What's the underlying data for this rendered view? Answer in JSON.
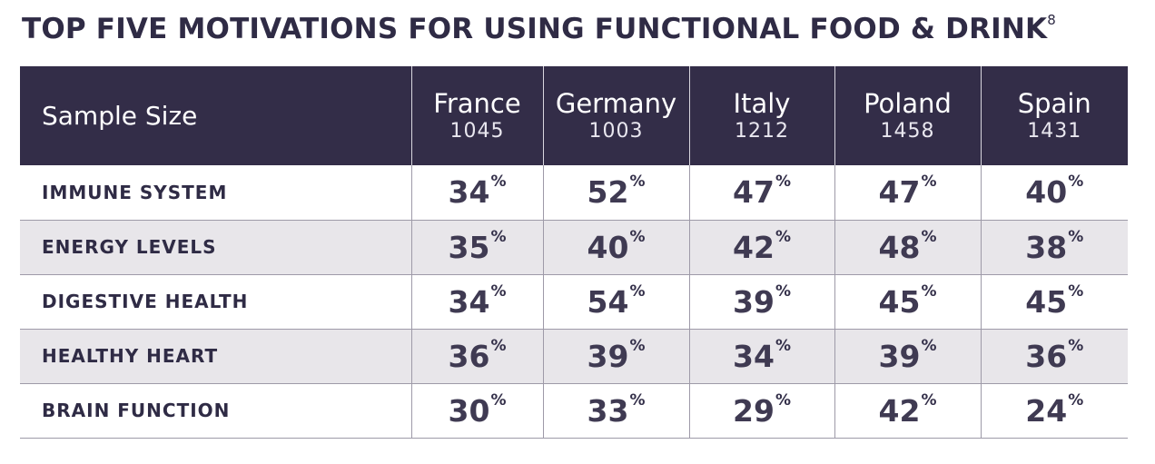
{
  "title": "TOP FIVE MOTIVATIONS FOR USING FUNCTIONAL FOOD & DRINK",
  "title_footnote": "8",
  "colors": {
    "header_bg": "#332d48",
    "alt_row_bg": "#e8e6ea",
    "text": "#34304a"
  },
  "chart_data": {
    "type": "table",
    "row_header_label": "Sample Size",
    "columns": [
      {
        "name": "France",
        "sample_size": "1045"
      },
      {
        "name": "Germany",
        "sample_size": "1003"
      },
      {
        "name": "Italy",
        "sample_size": "1212"
      },
      {
        "name": "Poland",
        "sample_size": "1458"
      },
      {
        "name": "Spain",
        "sample_size": "1431"
      }
    ],
    "unit": "%",
    "rows": [
      {
        "label": "IMMUNE SYSTEM",
        "values": [
          "34",
          "52",
          "47",
          "47",
          "40"
        ]
      },
      {
        "label": "ENERGY LEVELS",
        "values": [
          "35",
          "40",
          "42",
          "48",
          "38"
        ]
      },
      {
        "label": "DIGESTIVE HEALTH",
        "values": [
          "34",
          "54",
          "39",
          "45",
          "45"
        ]
      },
      {
        "label": "HEALTHY HEART",
        "values": [
          "36",
          "39",
          "34",
          "39",
          "36"
        ]
      },
      {
        "label": "BRAIN FUNCTION",
        "values": [
          "30",
          "33",
          "29",
          "42",
          "24"
        ]
      }
    ]
  }
}
